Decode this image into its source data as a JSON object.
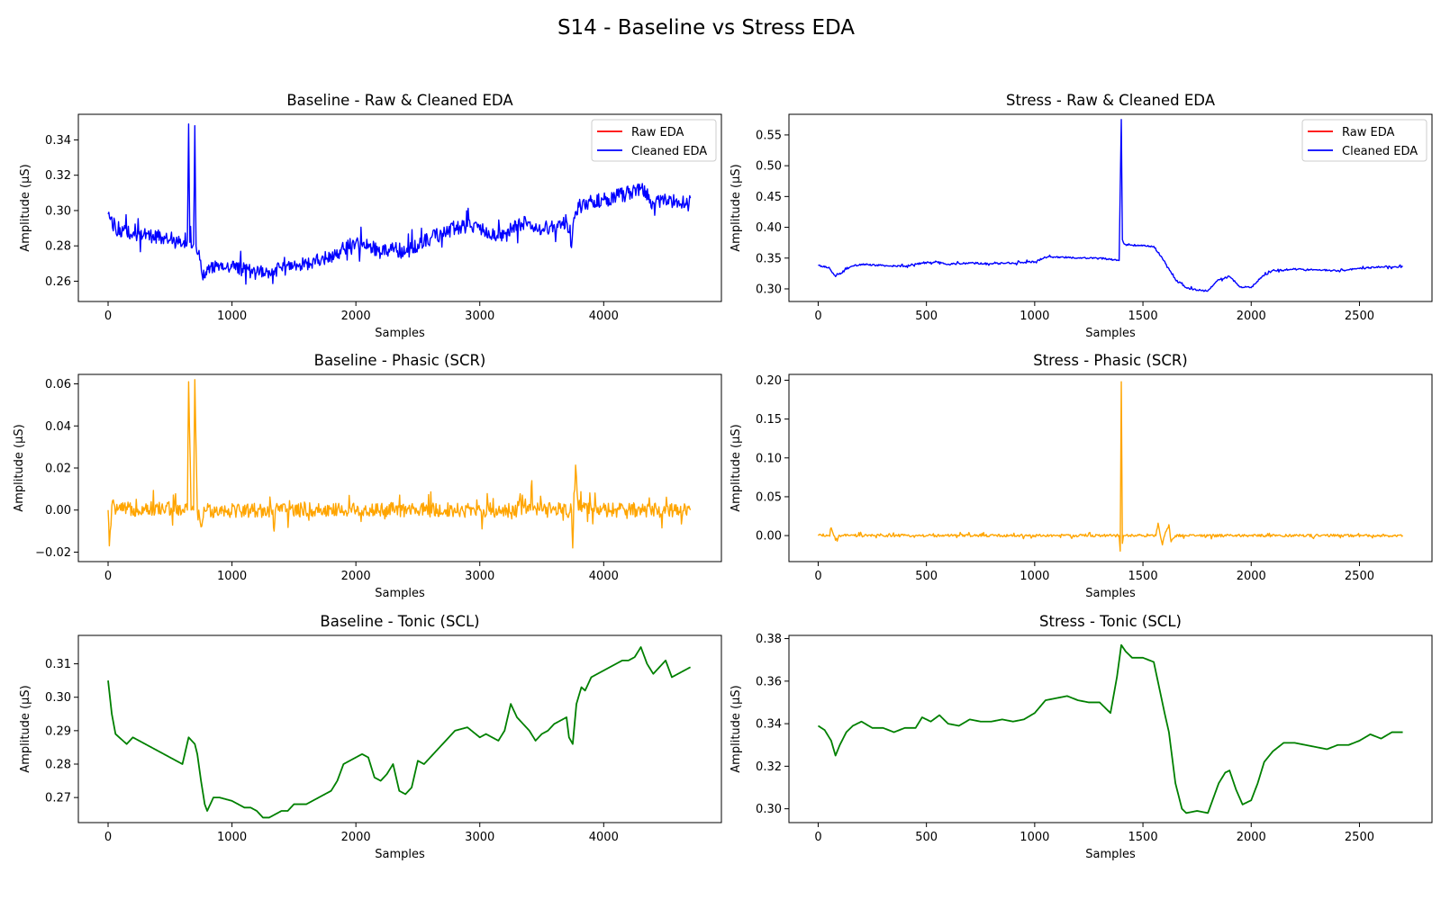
{
  "figure": {
    "suptitle": "S14 - Baseline vs Stress EDA"
  },
  "colors": {
    "raw": "#ff0000",
    "cleaned": "#0000ff",
    "phasic": "#ffa500",
    "tonic": "#008000",
    "axis": "#000000"
  },
  "chart_data": [
    {
      "type": "line",
      "title": "Baseline - Raw & Cleaned EDA",
      "xlabel": "Samples",
      "ylabel": "Amplitude (µS)",
      "xlim": [
        -240,
        4950
      ],
      "ylim": [
        0.2485,
        0.3545
      ],
      "xticks": [
        0,
        1000,
        2000,
        3000,
        4000
      ],
      "yticks": [
        0.26,
        0.28,
        0.3,
        0.32,
        0.34
      ],
      "ytick_labels": [
        "0.26",
        "0.28",
        "0.30",
        "0.32",
        "0.34"
      ],
      "legend": "top-right",
      "noise": 0.006,
      "series": [
        {
          "name": "Raw EDA",
          "color": "#ff0000",
          "x": [],
          "y": []
        },
        {
          "name": "Cleaned EDA",
          "color": "#0000ff",
          "x": [
            0,
            60,
            200,
            400,
            500,
            600,
            640,
            650,
            660,
            690,
            700,
            710,
            740,
            760,
            800,
            900,
            1000,
            1100,
            1200,
            1300,
            1400,
            1500,
            1600,
            1700,
            1800,
            1900,
            2000,
            2100,
            2200,
            2300,
            2400,
            2500,
            2600,
            2700,
            2800,
            2900,
            3000,
            3100,
            3200,
            3300,
            3400,
            3500,
            3600,
            3700,
            3740,
            3760,
            3800,
            3900,
            4000,
            4100,
            4200,
            4300,
            4400,
            4500,
            4600,
            4700
          ],
          "y": [
            0.298,
            0.29,
            0.287,
            0.285,
            0.283,
            0.281,
            0.283,
            0.349,
            0.282,
            0.281,
            0.348,
            0.28,
            0.272,
            0.263,
            0.268,
            0.269,
            0.268,
            0.267,
            0.265,
            0.266,
            0.267,
            0.269,
            0.27,
            0.272,
            0.274,
            0.278,
            0.282,
            0.281,
            0.276,
            0.279,
            0.276,
            0.281,
            0.284,
            0.287,
            0.29,
            0.291,
            0.289,
            0.286,
            0.287,
            0.292,
            0.293,
            0.289,
            0.292,
            0.294,
            0.279,
            0.296,
            0.302,
            0.305,
            0.306,
            0.308,
            0.31,
            0.313,
            0.304,
            0.307,
            0.305,
            0.307
          ]
        }
      ]
    },
    {
      "type": "line",
      "title": "Stress - Raw & Cleaned EDA",
      "xlabel": "Samples",
      "ylabel": "Amplitude (µS)",
      "xlim": [
        -135,
        2835
      ],
      "ylim": [
        0.2795,
        0.5835
      ],
      "xticks": [
        0,
        500,
        1000,
        1500,
        2000,
        2500
      ],
      "yticks": [
        0.3,
        0.35,
        0.4,
        0.45,
        0.5,
        0.55
      ],
      "ytick_labels": [
        "0.30",
        "0.35",
        "0.40",
        "0.45",
        "0.50",
        "0.55"
      ],
      "legend": "top-right",
      "noise": 0.002,
      "series": [
        {
          "name": "Raw EDA",
          "color": "#ff0000",
          "x": [],
          "y": []
        },
        {
          "name": "Cleaned EDA",
          "color": "#0000ff",
          "x": [
            0,
            50,
            80,
            150,
            200,
            300,
            400,
            480,
            550,
            600,
            700,
            800,
            900,
            1000,
            1050,
            1100,
            1200,
            1300,
            1390,
            1400,
            1405,
            1410,
            1420,
            1450,
            1500,
            1550,
            1600,
            1650,
            1700,
            1750,
            1800,
            1850,
            1900,
            1950,
            2000,
            2050,
            2100,
            2200,
            2300,
            2400,
            2500,
            2600,
            2700
          ],
          "y": [
            0.338,
            0.335,
            0.32,
            0.336,
            0.34,
            0.338,
            0.337,
            0.342,
            0.344,
            0.34,
            0.342,
            0.341,
            0.342,
            0.344,
            0.351,
            0.352,
            0.35,
            0.35,
            0.346,
            0.575,
            0.38,
            0.375,
            0.372,
            0.371,
            0.371,
            0.369,
            0.345,
            0.315,
            0.302,
            0.298,
            0.297,
            0.315,
            0.32,
            0.303,
            0.302,
            0.32,
            0.33,
            0.332,
            0.331,
            0.33,
            0.333,
            0.336,
            0.336
          ]
        }
      ]
    },
    {
      "type": "line",
      "title": "Baseline - Phasic (SCR)",
      "xlabel": "Samples",
      "ylabel": "Amplitude (µS)",
      "xlim": [
        -240,
        4950
      ],
      "ylim": [
        -0.0245,
        0.0645
      ],
      "xticks": [
        0,
        1000,
        2000,
        3000,
        4000
      ],
      "yticks": [
        -0.02,
        0.0,
        0.02,
        0.04,
        0.06
      ],
      "ytick_labels": [
        "−0.02",
        "0.00",
        "0.02",
        "0.04",
        "0.06"
      ],
      "noise": 0.005,
      "series": [
        {
          "name": "Phasic",
          "color": "#ffa500",
          "x": [
            0,
            10,
            30,
            100,
            300,
            640,
            650,
            670,
            690,
            700,
            720,
            750,
            780,
            900,
            1330,
            1340,
            1350,
            2000,
            3000,
            3300,
            3320,
            3410,
            3420,
            3430,
            3600,
            3740,
            3750,
            3760,
            3780,
            3790,
            3810,
            3900,
            4200,
            4500,
            4700
          ],
          "y": [
            0.0,
            -0.017,
            0.002,
            0.0,
            0.001,
            0.0,
            0.061,
            0.0,
            0.0,
            0.062,
            0.0,
            -0.008,
            0.0,
            0.0,
            0.0,
            -0.01,
            0.0,
            0.0,
            0.0,
            0.0,
            0.005,
            0.0,
            0.014,
            0.0,
            0.0,
            0.0,
            -0.018,
            0.008,
            0.016,
            0.005,
            0.0,
            0.0,
            0.0,
            0.0,
            0.0
          ]
        }
      ]
    },
    {
      "type": "line",
      "title": "Stress - Phasic (SCR)",
      "xlabel": "Samples",
      "ylabel": "Amplitude (µS)",
      "xlim": [
        -135,
        2835
      ],
      "ylim": [
        -0.0335,
        0.2075
      ],
      "xticks": [
        0,
        500,
        1000,
        1500,
        2000,
        2500
      ],
      "yticks": [
        0.0,
        0.05,
        0.1,
        0.15,
        0.2
      ],
      "ytick_labels": [
        "0.00",
        "0.05",
        "0.10",
        "0.15",
        "0.20"
      ],
      "noise": 0.0025,
      "series": [
        {
          "name": "Phasic",
          "color": "#ffa500",
          "x": [
            0,
            50,
            60,
            80,
            100,
            500,
            1000,
            1390,
            1395,
            1400,
            1405,
            1410,
            1420,
            1500,
            1560,
            1570,
            1590,
            1600,
            1620,
            1630,
            1650,
            1700,
            1900,
            2000,
            2700
          ],
          "y": [
            0.0,
            0.0,
            0.01,
            -0.006,
            0.0,
            0.0,
            0.0,
            0.0,
            -0.02,
            0.198,
            -0.01,
            0.0,
            0.0,
            0.0,
            0.0,
            0.016,
            -0.012,
            0.0,
            0.014,
            -0.008,
            0.0,
            0.0,
            0.0,
            0.0,
            0.0
          ]
        }
      ]
    },
    {
      "type": "line",
      "title": "Baseline - Tonic (SCL)",
      "xlabel": "Samples",
      "ylabel": "Amplitude (µS)",
      "xlim": [
        -240,
        4950
      ],
      "ylim": [
        0.2625,
        0.3185
      ],
      "xticks": [
        0,
        1000,
        2000,
        3000,
        4000
      ],
      "yticks": [
        0.27,
        0.28,
        0.29,
        0.3,
        0.31
      ],
      "ytick_labels": [
        "0.27",
        "0.28",
        "0.29",
        "0.30",
        "0.31"
      ],
      "noise": 0,
      "series": [
        {
          "name": "Tonic",
          "color": "#008000",
          "x": [
            0,
            30,
            60,
            90,
            120,
            150,
            200,
            250,
            300,
            350,
            400,
            450,
            500,
            550,
            600,
            650,
            700,
            720,
            750,
            780,
            800,
            850,
            900,
            1000,
            1100,
            1150,
            1200,
            1250,
            1300,
            1350,
            1400,
            1450,
            1500,
            1600,
            1700,
            1800,
            1850,
            1900,
            1950,
            2000,
            2050,
            2100,
            2150,
            2200,
            2250,
            2300,
            2350,
            2400,
            2450,
            2500,
            2550,
            2600,
            2650,
            2700,
            2800,
            2900,
            3000,
            3050,
            3100,
            3150,
            3200,
            3250,
            3300,
            3350,
            3400,
            3450,
            3500,
            3550,
            3600,
            3650,
            3700,
            3720,
            3750,
            3780,
            3820,
            3850,
            3900,
            4000,
            4100,
            4150,
            4200,
            4250,
            4300,
            4350,
            4400,
            4450,
            4500,
            4550,
            4600,
            4650,
            4700
          ],
          "y": [
            0.305,
            0.295,
            0.289,
            0.288,
            0.287,
            0.286,
            0.288,
            0.287,
            0.286,
            0.285,
            0.284,
            0.283,
            0.282,
            0.281,
            0.28,
            0.288,
            0.286,
            0.283,
            0.275,
            0.268,
            0.266,
            0.27,
            0.27,
            0.269,
            0.267,
            0.267,
            0.266,
            0.264,
            0.264,
            0.265,
            0.266,
            0.266,
            0.268,
            0.268,
            0.27,
            0.272,
            0.275,
            0.28,
            0.281,
            0.282,
            0.283,
            0.282,
            0.276,
            0.275,
            0.277,
            0.28,
            0.272,
            0.271,
            0.273,
            0.281,
            0.28,
            0.282,
            0.284,
            0.286,
            0.29,
            0.291,
            0.288,
            0.289,
            0.288,
            0.287,
            0.29,
            0.298,
            0.294,
            0.292,
            0.29,
            0.287,
            0.289,
            0.29,
            0.292,
            0.293,
            0.294,
            0.288,
            0.286,
            0.298,
            0.303,
            0.302,
            0.306,
            0.308,
            0.31,
            0.311,
            0.311,
            0.312,
            0.315,
            0.31,
            0.307,
            0.309,
            0.311,
            0.306,
            0.307,
            0.308,
            0.309
          ]
        }
      ]
    },
    {
      "type": "line",
      "title": "Stress - Tonic (SCL)",
      "xlabel": "Samples",
      "ylabel": "Amplitude (µS)",
      "xlim": [
        -135,
        2835
      ],
      "ylim": [
        0.2935,
        0.3815
      ],
      "xticks": [
        0,
        500,
        1000,
        1500,
        2000,
        2500
      ],
      "yticks": [
        0.3,
        0.32,
        0.34,
        0.36,
        0.38
      ],
      "ytick_labels": [
        "0.30",
        "0.32",
        "0.34",
        "0.36",
        "0.38"
      ],
      "noise": 0,
      "series": [
        {
          "name": "Tonic",
          "color": "#008000",
          "x": [
            0,
            30,
            60,
            80,
            100,
            130,
            160,
            200,
            250,
            300,
            350,
            400,
            450,
            480,
            520,
            560,
            600,
            650,
            700,
            750,
            800,
            850,
            900,
            950,
            1000,
            1050,
            1100,
            1150,
            1200,
            1250,
            1300,
            1350,
            1380,
            1400,
            1420,
            1450,
            1500,
            1550,
            1600,
            1620,
            1650,
            1680,
            1700,
            1750,
            1800,
            1850,
            1880,
            1900,
            1930,
            1960,
            2000,
            2030,
            2060,
            2100,
            2150,
            2200,
            2250,
            2300,
            2350,
            2400,
            2450,
            2500,
            2550,
            2600,
            2650,
            2700
          ],
          "y": [
            0.339,
            0.337,
            0.332,
            0.325,
            0.33,
            0.336,
            0.339,
            0.341,
            0.338,
            0.338,
            0.336,
            0.338,
            0.338,
            0.343,
            0.341,
            0.344,
            0.34,
            0.339,
            0.342,
            0.341,
            0.341,
            0.342,
            0.341,
            0.342,
            0.345,
            0.351,
            0.352,
            0.353,
            0.351,
            0.35,
            0.35,
            0.345,
            0.362,
            0.377,
            0.374,
            0.371,
            0.371,
            0.369,
            0.345,
            0.336,
            0.312,
            0.3,
            0.298,
            0.299,
            0.298,
            0.312,
            0.317,
            0.318,
            0.309,
            0.302,
            0.304,
            0.312,
            0.322,
            0.327,
            0.331,
            0.331,
            0.33,
            0.329,
            0.328,
            0.33,
            0.33,
            0.332,
            0.335,
            0.333,
            0.336,
            0.336
          ]
        }
      ]
    }
  ]
}
